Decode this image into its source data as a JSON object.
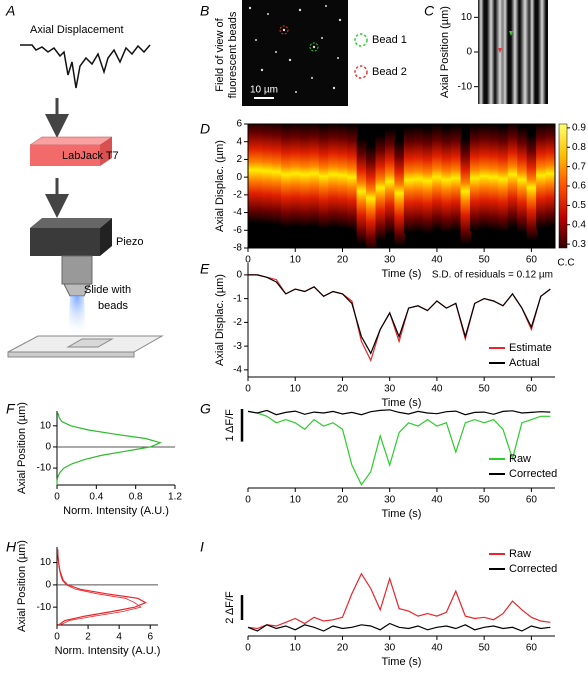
{
  "panels": [
    "A",
    "B",
    "C",
    "D",
    "E",
    "F",
    "G",
    "H",
    "I"
  ],
  "diagram": {
    "trace_label": "Axial Displacement",
    "labjack": "LabJack T7",
    "piezo": "Piezo",
    "slide": [
      "Slide with",
      "beads"
    ]
  },
  "fov": {
    "label": [
      "Field of view of",
      "fluorescent beads"
    ],
    "scale": "10 µm",
    "legend": [
      "Bead 1",
      "Bead 2"
    ]
  },
  "chart_data": [
    {
      "type": "image",
      "ylabel": "Axial Position (µm)",
      "ylim": [
        -15,
        15
      ],
      "yticks": [
        10,
        0,
        -10
      ]
    },
    {
      "type": "heatmap",
      "xlabel": "Time (s)",
      "ylabel": "Axial Displac. (µm)",
      "xlim": [
        0,
        65
      ],
      "xticks": [
        0,
        10,
        20,
        30,
        40,
        50,
        60
      ],
      "ylim": [
        -8,
        6
      ],
      "yticks": [
        6,
        4,
        2,
        0,
        -2,
        -4,
        -6,
        -8
      ],
      "x": [
        0,
        2,
        4,
        6,
        8,
        10,
        12,
        14,
        16,
        18,
        20,
        22,
        24,
        26,
        28,
        30,
        32,
        34,
        36,
        38,
        40,
        42,
        44,
        46,
        48,
        50,
        52,
        54,
        56,
        58,
        60,
        62,
        64
      ],
      "values": [
        0.8,
        0.8,
        0.7,
        0.6,
        0.3,
        0.4,
        0.3,
        0.4,
        0.1,
        0.3,
        0.2,
        0,
        -1.6,
        -2.4,
        -1.2,
        -0.5,
        -1.8,
        -0.3,
        -0.2,
        -0.4,
        0,
        -0.3,
        -0.1,
        -1.6,
        -0.1,
        0.1,
        0,
        -0.2,
        0.3,
        -0.3,
        -1.2,
        0.2,
        0.4
      ],
      "clim": [
        0.28,
        0.92
      ],
      "cticks": [
        0.9,
        0.8,
        0.7,
        0.6,
        0.5,
        0.4,
        0.3
      ],
      "clabel": "C.C"
    },
    {
      "type": "line",
      "xlabel": "Time (s)",
      "ylabel": "Axial Displac. (µm)",
      "xlim": [
        0,
        65
      ],
      "xticks": [
        0,
        10,
        20,
        30,
        40,
        50,
        60
      ],
      "ylim": [
        -4.3,
        0.5
      ],
      "yticks": [
        0,
        -1,
        -2,
        -3,
        -4
      ],
      "annotation": "S.D. of residuals = 0.12 µm",
      "legend": "lower right",
      "x": [
        0,
        2,
        4,
        6,
        8,
        10,
        12,
        14,
        16,
        18,
        20,
        22,
        24,
        26,
        28,
        30,
        32,
        34,
        36,
        38,
        40,
        42,
        44,
        46,
        48,
        50,
        52,
        54,
        56,
        58,
        60,
        62,
        64
      ],
      "series": [
        {
          "name": "Estimate",
          "color": "#e8252a",
          "values": [
            0,
            0,
            -0.1,
            -0.2,
            -0.8,
            -0.6,
            -0.7,
            -0.5,
            -0.9,
            -0.7,
            -0.8,
            -1.1,
            -2.8,
            -3.6,
            -2.3,
            -1.6,
            -2.8,
            -1.4,
            -1.3,
            -1.5,
            -1.1,
            -1.4,
            -1.2,
            -2.7,
            -1.2,
            -1.0,
            -1.1,
            -1.3,
            -0.8,
            -1.4,
            -2.3,
            -0.9,
            -0.6
          ]
        },
        {
          "name": "Actual",
          "color": "#000000",
          "values": [
            0,
            0,
            -0.1,
            -0.3,
            -0.8,
            -0.6,
            -0.7,
            -0.5,
            -0.9,
            -0.7,
            -0.8,
            -1.2,
            -2.6,
            -3.3,
            -2.3,
            -1.6,
            -2.6,
            -1.4,
            -1.3,
            -1.5,
            -1.1,
            -1.4,
            -1.2,
            -2.6,
            -1.2,
            -1.0,
            -1.1,
            -1.3,
            -0.8,
            -1.4,
            -2.2,
            -0.9,
            -0.6
          ]
        }
      ]
    },
    {
      "type": "profile",
      "xlabel": "Norm. Intensity (A.U.)",
      "ylabel": "Axial Position (µm)",
      "xlim": [
        0,
        1.2
      ],
      "xticks": [
        0,
        0.4,
        0.8,
        1.2
      ],
      "ylim": [
        -18,
        17
      ],
      "yticks": [
        10,
        0,
        -10
      ],
      "hline": 0,
      "y": [
        -18,
        -16,
        -14,
        -12,
        -10,
        -8,
        -6,
        -4,
        -2,
        0,
        2,
        4,
        6,
        8,
        10,
        12,
        14,
        16
      ],
      "series": [
        {
          "color": "#2dbb2d",
          "values": [
            0,
            0,
            0.01,
            0.03,
            0.07,
            0.15,
            0.28,
            0.45,
            0.7,
            0.95,
            1.05,
            0.9,
            0.6,
            0.32,
            0.14,
            0.05,
            0.02,
            0.01
          ]
        }
      ]
    },
    {
      "type": "line",
      "xlabel": "Time (s)",
      "xlim": [
        0,
        65
      ],
      "xticks": [
        0,
        10,
        20,
        30,
        40,
        50,
        60
      ],
      "ylim": [
        -2.3,
        0.4
      ],
      "scalebar": {
        "value": 1,
        "label": "1 ΔF/F"
      },
      "legend": "lower right",
      "x": [
        0,
        2,
        4,
        6,
        8,
        10,
        12,
        14,
        16,
        18,
        20,
        22,
        24,
        26,
        28,
        30,
        32,
        34,
        36,
        38,
        40,
        42,
        44,
        46,
        48,
        50,
        52,
        54,
        56,
        58,
        60,
        62,
        64
      ],
      "series": [
        {
          "name": "Raw",
          "color": "#2dcc2d",
          "values": [
            0.05,
            0,
            -0.1,
            -0.3,
            -0.2,
            -0.3,
            -0.5,
            -0.2,
            -0.4,
            -0.3,
            -0.5,
            -1.6,
            -2.2,
            -1.8,
            -0.7,
            -1.6,
            -0.6,
            -0.3,
            -0.4,
            -0.2,
            -0.4,
            -0.3,
            -1.2,
            -0.3,
            -0.2,
            -0.3,
            -0.2,
            -0.5,
            -1.4,
            -0.3,
            -0.2,
            -0.1,
            -0.1
          ]
        },
        {
          "name": "Corrected",
          "color": "#000000",
          "values": [
            0.05,
            0,
            0.08,
            -0.05,
            0.02,
            0.06,
            -0.04,
            0.03,
            0,
            0.05,
            -0.03,
            0.02,
            -0.05,
            0.04,
            0.08,
            0.1,
            0.02,
            -0.03,
            0.05,
            0,
            -0.02,
            0.04,
            0.06,
            -0.05,
            0.02,
            0.03,
            -0.04,
            0.05,
            0.07,
            0,
            0.02,
            0.04,
            0.03
          ]
        }
      ]
    },
    {
      "type": "profile",
      "xlabel": "Norm. Intensity (A.U.)",
      "ylabel": "Axial Position (µm)",
      "xlim": [
        0,
        6.5
      ],
      "xticks": [
        0,
        2,
        4,
        6
      ],
      "ylim": [
        -18,
        17
      ],
      "yticks": [
        10,
        0,
        -10
      ],
      "hline": 0,
      "y": [
        -18,
        -16,
        -14,
        -12,
        -10,
        -8,
        -6,
        -4,
        -2,
        0,
        2,
        4,
        6,
        8,
        10,
        12,
        14,
        16
      ],
      "series": [
        {
          "color": "#e8252a",
          "values": [
            0.1,
            0.5,
            1.8,
            3.5,
            5.0,
            5.7,
            5.2,
            3.2,
            1.5,
            0.7,
            0.4,
            0.3,
            0.2,
            0.15,
            0.1,
            0.08,
            0.05,
            0.05
          ]
        },
        {
          "color": "#e8252a",
          "values": [
            0.2,
            0.8,
            2.4,
            4.2,
            5.4,
            5.0,
            4.4,
            2.6,
            1.2,
            0.6,
            0.35,
            0.25,
            0.18,
            0.12,
            0.1,
            0.07,
            0.05,
            0.04
          ]
        }
      ]
    },
    {
      "type": "line",
      "xlabel": "Time (s)",
      "xlim": [
        0,
        65
      ],
      "xticks": [
        0,
        10,
        20,
        30,
        40,
        50,
        60
      ],
      "ylim": [
        -0.6,
        7.1
      ],
      "scalebar": {
        "value": 2,
        "label": "2 ΔF/F"
      },
      "legend": "upper right",
      "x": [
        0,
        2,
        4,
        6,
        8,
        10,
        12,
        14,
        16,
        18,
        20,
        22,
        24,
        26,
        28,
        30,
        32,
        34,
        36,
        38,
        40,
        42,
        44,
        46,
        48,
        50,
        52,
        54,
        56,
        58,
        60,
        62,
        64
      ],
      "series": [
        {
          "name": "Raw",
          "color": "#e8252a",
          "values": [
            0.1,
            0,
            0.3,
            0.2,
            0.5,
            0.8,
            0.4,
            0.9,
            0.6,
            0.7,
            0.9,
            2.8,
            4.4,
            3.2,
            1.5,
            4.0,
            1.6,
            1.4,
            1.0,
            1.2,
            1.0,
            1.3,
            3.0,
            1.0,
            0.8,
            0.9,
            0.7,
            1.2,
            2.2,
            1.5,
            0.9,
            0.6,
            0.5
          ]
        },
        {
          "name": "Corrected",
          "color": "#000000",
          "values": [
            0.1,
            -0.2,
            0.3,
            0,
            0.2,
            -0.1,
            0.3,
            0.1,
            -0.2,
            0.2,
            0,
            0.1,
            0.3,
            0.2,
            -0.1,
            0.4,
            0.1,
            0,
            0.2,
            -0.1,
            0.1,
            0.2,
            0,
            0.3,
            -0.1,
            0.1,
            0.2,
            0,
            0.1,
            -0.2,
            0.2,
            0,
            0.1
          ]
        }
      ]
    }
  ]
}
